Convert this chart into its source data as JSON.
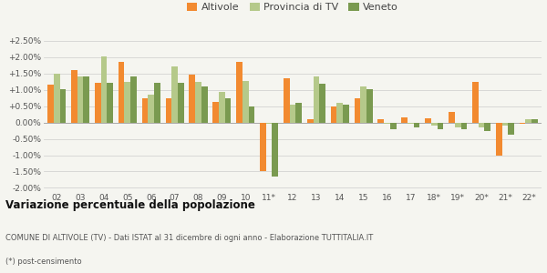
{
  "categories": [
    "02",
    "03",
    "04",
    "05",
    "06",
    "07",
    "08",
    "09",
    "10",
    "11*",
    "12",
    "13",
    "14",
    "15",
    "16",
    "17",
    "18*",
    "19*",
    "20*",
    "21*",
    "22*"
  ],
  "altivole": [
    1.15,
    1.6,
    1.22,
    1.85,
    0.75,
    0.75,
    1.48,
    0.62,
    1.85,
    -1.5,
    1.35,
    0.1,
    0.48,
    0.75,
    0.1,
    0.15,
    0.13,
    0.33,
    1.25,
    -1.0,
    -0.05
  ],
  "provincia": [
    1.5,
    1.42,
    2.02,
    1.25,
    0.85,
    1.72,
    1.25,
    0.95,
    1.28,
    -0.05,
    0.55,
    1.4,
    0.6,
    1.1,
    -0.05,
    -0.05,
    -0.1,
    -0.15,
    -0.15,
    -0.1,
    0.1
  ],
  "veneto": [
    1.03,
    1.42,
    1.22,
    1.42,
    1.22,
    1.22,
    1.1,
    0.75,
    0.5,
    -1.65,
    0.6,
    1.2,
    0.55,
    1.02,
    -0.2,
    -0.15,
    -0.2,
    -0.2,
    -0.25,
    -0.38,
    0.1
  ],
  "color_altivole": "#f28a30",
  "color_provincia": "#b5c98a",
  "color_veneto": "#7a9a50",
  "title": "Variazione percentuale della popolazione",
  "subtitle": "COMUNE DI ALTIVOLE (TV) - Dati ISTAT al 31 dicembre di ogni anno - Elaborazione TUTTITALIA.IT",
  "footnote": "(*) post-censimento",
  "ylim_min": -2.1,
  "ylim_max": 2.75,
  "yticks": [
    -2.0,
    -1.5,
    -1.0,
    -0.5,
    0.0,
    0.5,
    1.0,
    1.5,
    2.0,
    2.5
  ],
  "bg_color": "#f5f5f0",
  "legend_labels": [
    "Altivole",
    "Provincia di TV",
    "Veneto"
  ]
}
